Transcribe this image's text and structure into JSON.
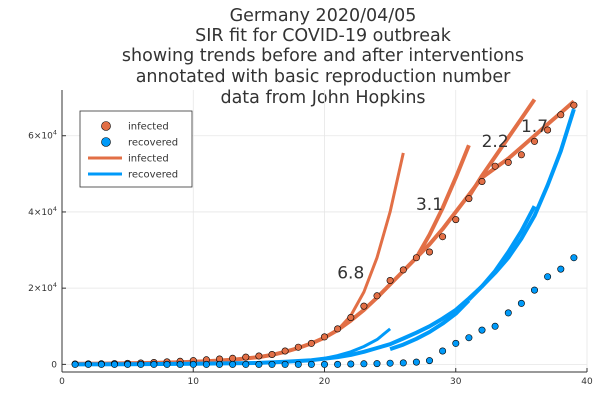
{
  "colors": {
    "infected": "#e26f46",
    "recovered": "#009af9",
    "grid": "#e6e6e6",
    "axis": "#333333"
  },
  "chart_data": {
    "type": "scatter",
    "title": [
      "Germany 2020/04/05",
      "SIR fit for COVID-19 outbreak",
      "showing trends before and after interventions",
      "annotated with basic reproduction number",
      "data from John Hopkins"
    ],
    "xlim": [
      0,
      40
    ],
    "ylim": [
      -2000,
      72000
    ],
    "x_ticks": [
      0,
      10,
      20,
      30,
      40
    ],
    "x_tick_labels": [
      "0",
      "10",
      "20",
      "30",
      "40"
    ],
    "y_ticks": [
      0,
      20000,
      40000,
      60000
    ],
    "y_tick_labels": [
      {
        "base": "0",
        "exp": ""
      },
      {
        "base": "2×10",
        "exp": "4"
      },
      {
        "base": "4×10",
        "exp": "4"
      },
      {
        "base": "6×10",
        "exp": "4"
      }
    ],
    "grid": true,
    "legend_position": "top-left",
    "legend": [
      {
        "label": "infected",
        "kind": "marker",
        "color": "#e26f46"
      },
      {
        "label": "recovered",
        "kind": "marker",
        "color": "#009af9"
      },
      {
        "label": "infected",
        "kind": "line",
        "color": "#e26f46"
      },
      {
        "label": "recovered",
        "kind": "line",
        "color": "#009af9"
      }
    ],
    "series": [
      {
        "name": "infected",
        "kind": "scatter",
        "color": "#e26f46",
        "x": [
          1,
          2,
          3,
          4,
          5,
          6,
          7,
          8,
          9,
          10,
          11,
          12,
          13,
          14,
          15,
          16,
          17,
          18,
          19,
          20,
          21,
          22,
          23,
          24,
          25,
          26,
          27,
          28,
          29,
          30,
          31,
          32,
          33,
          34,
          35,
          36,
          37,
          38,
          39
        ],
        "y": [
          100,
          130,
          160,
          200,
          260,
          350,
          480,
          650,
          800,
          1000,
          1200,
          1400,
          1600,
          1900,
          2200,
          2600,
          3500,
          4500,
          5500,
          7200,
          9300,
          12300,
          15300,
          18000,
          22000,
          24800,
          28000,
          29500,
          33500,
          38000,
          43500,
          48000,
          52000,
          53000,
          55000,
          58500,
          61500,
          65500,
          68000
        ]
      },
      {
        "name": "recovered",
        "kind": "scatter",
        "color": "#009af9",
        "x": [
          1,
          2,
          3,
          4,
          5,
          6,
          7,
          8,
          9,
          10,
          11,
          12,
          13,
          14,
          15,
          16,
          17,
          18,
          19,
          20,
          21,
          22,
          23,
          24,
          25,
          26,
          27,
          28,
          29,
          30,
          31,
          32,
          33,
          34,
          35,
          36,
          37,
          38,
          39
        ],
        "y": [
          0,
          0,
          0,
          0,
          0,
          0,
          0,
          0,
          0,
          0,
          0,
          0,
          0,
          0,
          0,
          0,
          0,
          0,
          0,
          0,
          0,
          100,
          150,
          200,
          300,
          400,
          600,
          1000,
          3500,
          5500,
          7000,
          9000,
          10000,
          13500,
          16000,
          19500,
          23000,
          25000,
          28000
        ]
      },
      {
        "name": "infected",
        "kind": "line",
        "color": "#e26f46",
        "width": 4,
        "x": [
          1,
          3,
          5,
          7,
          9,
          11,
          13,
          15,
          16,
          17,
          18,
          19,
          20,
          21,
          22,
          23,
          24,
          25,
          26,
          27,
          28,
          29,
          30,
          31,
          32,
          33,
          34,
          35,
          36,
          37,
          38,
          39
        ],
        "y": [
          150,
          200,
          280,
          380,
          550,
          800,
          1200,
          1900,
          2500,
          3300,
          4300,
          5500,
          7000,
          9000,
          11500,
          14300,
          17500,
          21000,
          24500,
          28000,
          31500,
          35500,
          40000,
          44500,
          49000,
          51500,
          54000,
          57000,
          60000,
          63000,
          66000,
          69000
        ]
      },
      {
        "name": "",
        "kind": "line",
        "color": "#e26f46",
        "width": 3,
        "x": [
          21,
          22,
          23,
          24,
          25,
          26
        ],
        "y": [
          9000,
          12800,
          19000,
          28000,
          40000,
          55500
        ]
      },
      {
        "name": "",
        "kind": "line",
        "color": "#e26f46",
        "width": 4,
        "x": [
          27,
          28,
          29,
          30,
          31
        ],
        "y": [
          28000,
          34000,
          41000,
          49000,
          57500
        ]
      },
      {
        "name": "",
        "kind": "line",
        "color": "#e26f46",
        "width": 4,
        "x": [
          31,
          32,
          33,
          34,
          35,
          36
        ],
        "y": [
          44000,
          49500,
          54500,
          59500,
          64500,
          69500
        ]
      },
      {
        "name": "recovered",
        "kind": "line",
        "color": "#009af9",
        "width": 4,
        "x": [
          1,
          5,
          10,
          15,
          17,
          19,
          21,
          22,
          23,
          24,
          25,
          26,
          27,
          28,
          29,
          30,
          31,
          32,
          33,
          34,
          35,
          36,
          37,
          38,
          39
        ],
        "y": [
          0,
          50,
          150,
          400,
          700,
          1100,
          1900,
          2500,
          3300,
          4300,
          5300,
          6800,
          8300,
          10000,
          12000,
          14300,
          17300,
          20500,
          24000,
          28000,
          33000,
          39000,
          47000,
          56000,
          67000
        ]
      },
      {
        "name": "",
        "kind": "line",
        "color": "#009af9",
        "width": 3,
        "x": [
          19,
          20,
          21,
          22,
          23,
          24,
          25
        ],
        "y": [
          1100,
          1600,
          2300,
          3300,
          4700,
          6500,
          9300
        ]
      },
      {
        "name": "",
        "kind": "line",
        "color": "#009af9",
        "width": 4,
        "x": [
          25,
          26,
          27,
          28,
          29,
          30,
          31
        ],
        "y": [
          4000,
          5200,
          6700,
          8500,
          10700,
          13300,
          16800
        ]
      },
      {
        "name": "",
        "kind": "line",
        "color": "#009af9",
        "width": 4,
        "x": [
          31,
          32,
          33,
          34,
          35,
          36
        ],
        "y": [
          17000,
          20500,
          24500,
          29500,
          35000,
          41500
        ]
      }
    ],
    "annotations": [
      {
        "text": "6.8",
        "x": 22,
        "y": 22500
      },
      {
        "text": "3.1",
        "x": 28,
        "y": 40500
      },
      {
        "text": "2.2",
        "x": 33,
        "y": 57000
      },
      {
        "text": "1.7",
        "x": 36,
        "y": 61000
      }
    ]
  }
}
